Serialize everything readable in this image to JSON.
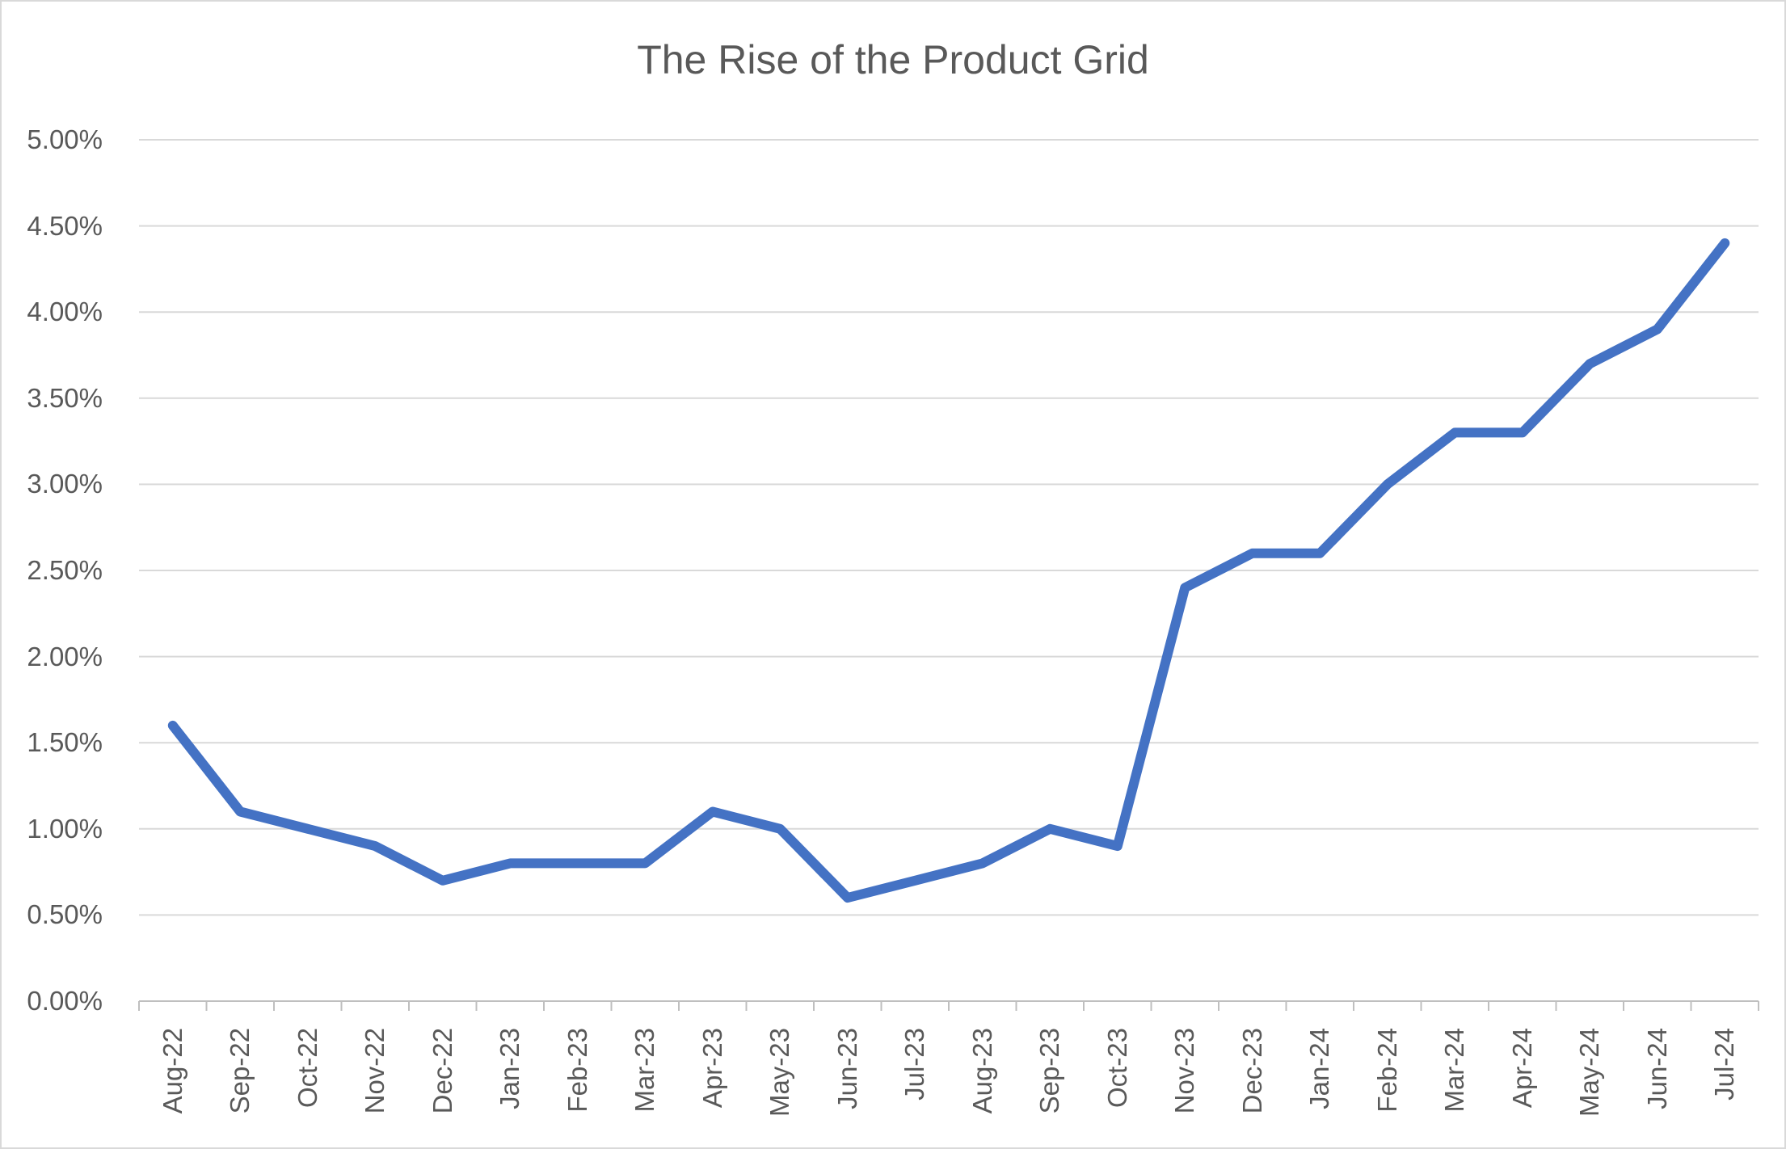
{
  "chart_data": {
    "type": "line",
    "title": "The Rise of the Product Grid",
    "categories": [
      "Aug-22",
      "Sep-22",
      "Oct-22",
      "Nov-22",
      "Dec-22",
      "Jan-23",
      "Feb-23",
      "Mar-23",
      "Apr-23",
      "May-23",
      "Jun-23",
      "Jul-23",
      "Aug-23",
      "Sep-23",
      "Oct-23",
      "Nov-23",
      "Dec-23",
      "Jan-24",
      "Feb-24",
      "Mar-24",
      "Apr-24",
      "May-24",
      "Jun-24",
      "Jul-24"
    ],
    "values": [
      1.6,
      1.1,
      1.0,
      0.9,
      0.7,
      0.8,
      0.8,
      0.8,
      1.1,
      1.0,
      0.6,
      0.7,
      0.8,
      1.0,
      0.9,
      2.4,
      2.6,
      2.6,
      3.0,
      3.3,
      3.3,
      3.7,
      3.9,
      4.4
    ],
    "unit": "%",
    "xlabel": "",
    "ylabel": "",
    "ylim": [
      0,
      5
    ],
    "ytick_step": 0.5,
    "ytick_labels": [
      "5.00%",
      "4.50%",
      "4.00%",
      "3.50%",
      "3.00%",
      "2.50%",
      "2.00%",
      "1.50%",
      "1.00%",
      "0.50%",
      "0.00%"
    ],
    "grid": "horizontal",
    "legend": "none",
    "markers": "none",
    "colors": {
      "line": "#4472C4",
      "gridline": "#D9D9D9",
      "axis_line": "#BFBFBF",
      "tick_mark": "#BFBFBF",
      "label_text": "#595959",
      "title_text": "#595959",
      "background": "#FFFFFF",
      "frame_border": "#D9D9D9"
    }
  }
}
